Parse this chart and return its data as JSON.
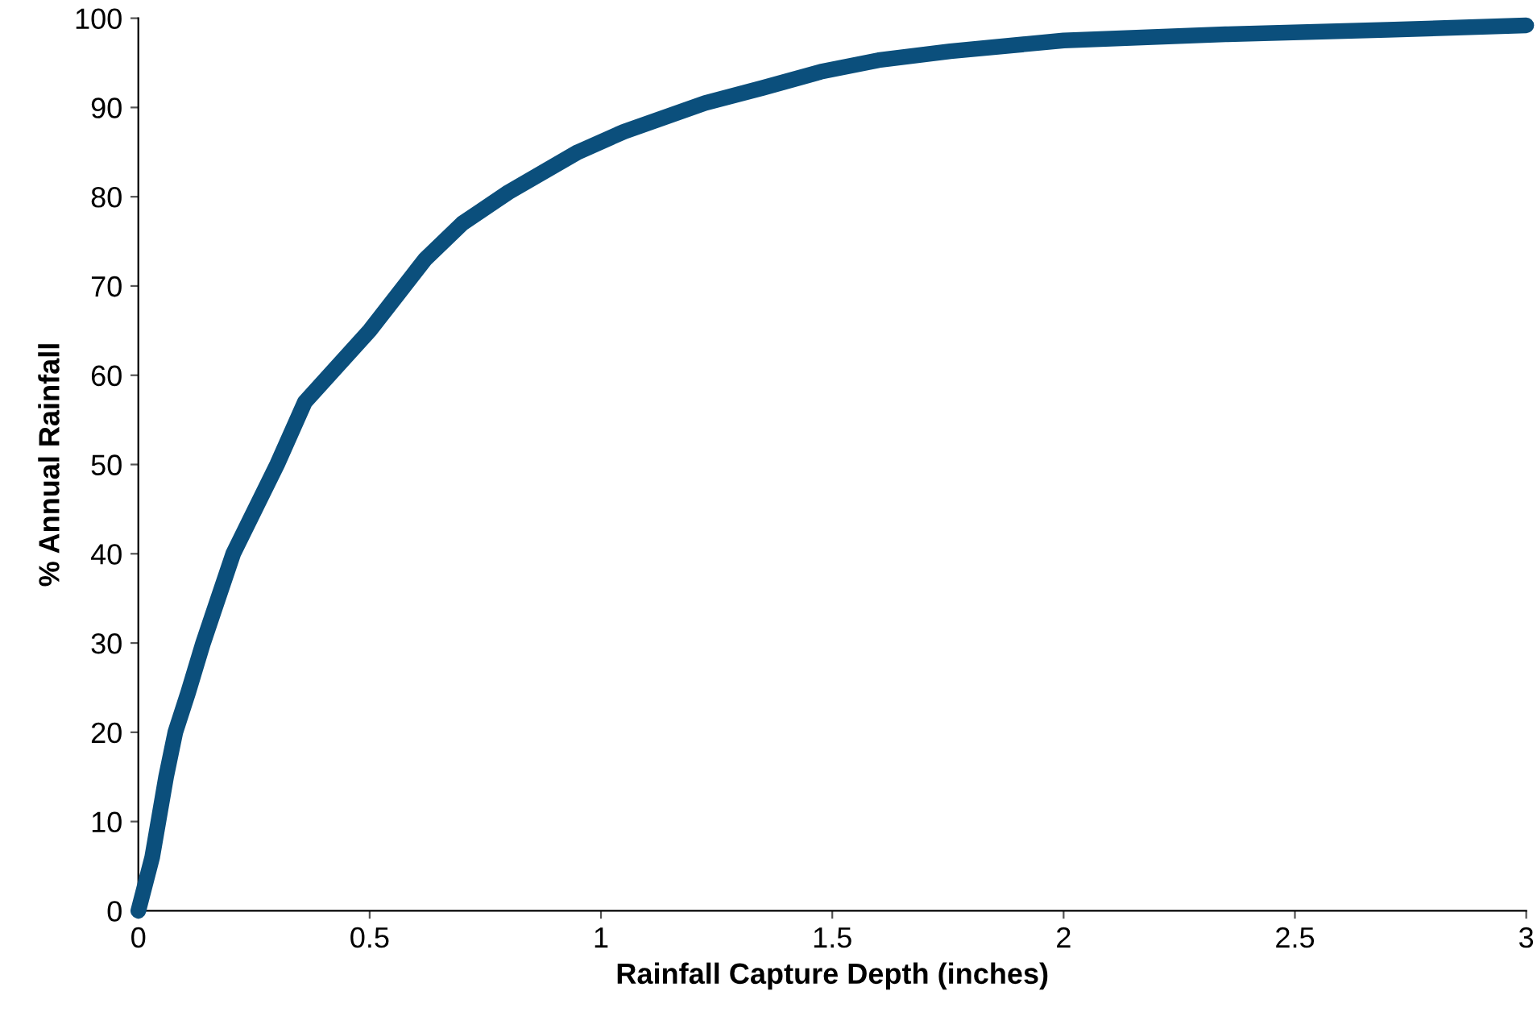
{
  "chart_data": {
    "type": "line",
    "xlabel": "Rainfall Capture Depth (inches)",
    "ylabel": "% Annual Rainfall",
    "series": [
      {
        "color": "#0b4f7c",
        "x": [
          0,
          0.03,
          0.06,
          0.08,
          0.108,
          0.14,
          0.205,
          0.3,
          0.36,
          0.5,
          0.62,
          0.7,
          0.8,
          0.95,
          1.05,
          1.225,
          1.35,
          1.475,
          1.6,
          1.755,
          2.0,
          2.35,
          2.7,
          3.0
        ],
        "values": [
          0,
          6,
          15,
          20,
          24.5,
          30,
          40,
          50,
          57,
          65,
          73,
          77,
          80.5,
          85,
          87.3,
          90.5,
          92.2,
          94,
          95.3,
          96.3,
          97.5,
          98.2,
          98.7,
          99.2
        ]
      }
    ],
    "xlim": [
      0,
      3
    ],
    "xticks": [
      0,
      0.5,
      1,
      1.5,
      2,
      2.5,
      3
    ],
    "ylim": [
      0,
      100
    ],
    "yticks": [
      0,
      10,
      20,
      30,
      40,
      50,
      60,
      70,
      80,
      90,
      100
    ],
    "grid": false,
    "legend": false,
    "marker": "none",
    "line_style": "solid"
  }
}
